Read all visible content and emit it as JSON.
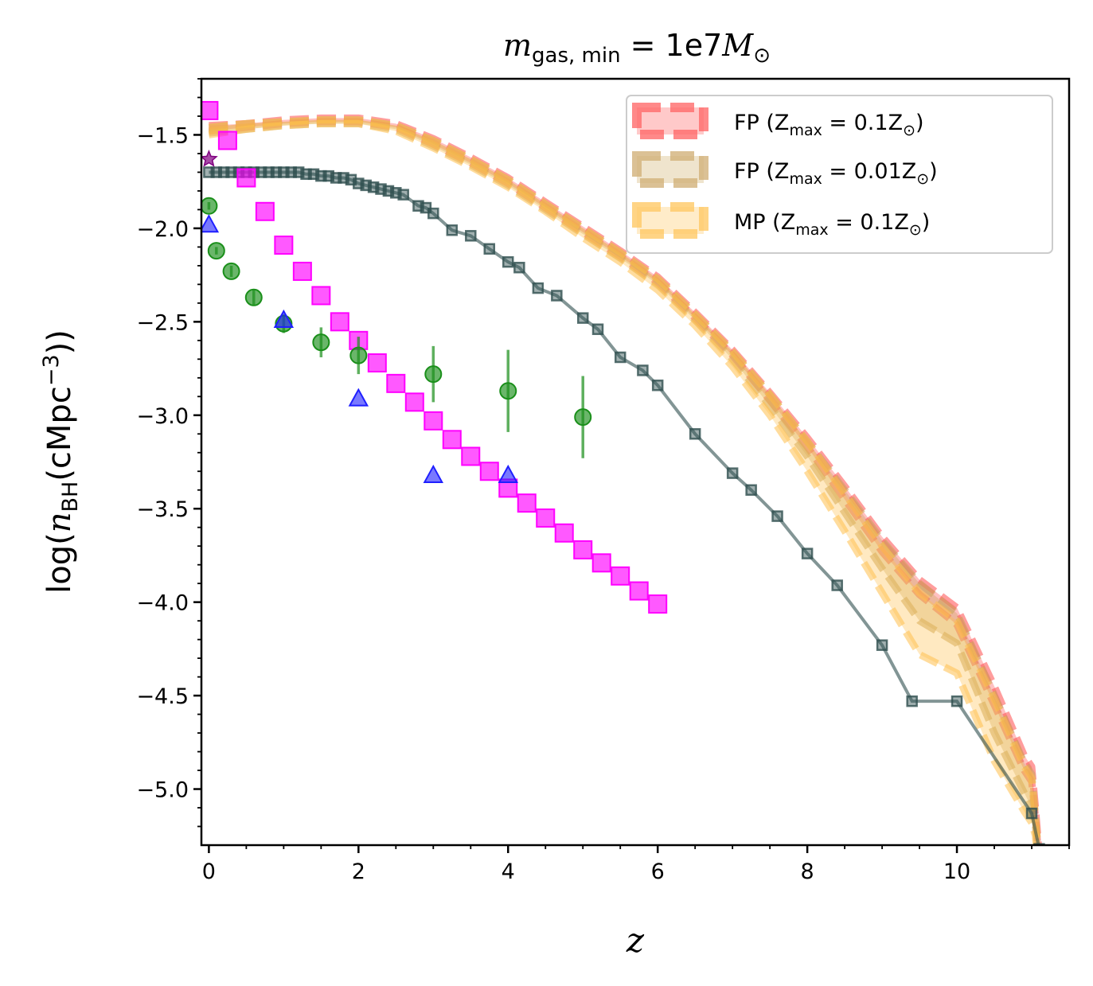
{
  "chart_data": {
    "type": "line",
    "title": "m_gas, min = 1e7M☉",
    "title_parts": {
      "var": "m",
      "sub": "gas, min",
      "rest": " = 1e7",
      "mvar": "M",
      "msub": "⊙"
    },
    "xlabel": "z",
    "ylabel": "log(n_BH(cMpc^-3))",
    "ylabel_parts": {
      "pre": "log(",
      "var": "n",
      "sub": "BH",
      "mid": "(cMpc",
      "sup": "−3",
      "post": "))"
    },
    "xlim": [
      -0.1,
      11.5
    ],
    "ylim": [
      -5.3,
      -1.2
    ],
    "xticks": [
      0,
      2,
      4,
      6,
      8,
      10
    ],
    "xtick_labels": [
      "0",
      "2",
      "4",
      "6",
      "8",
      "10"
    ],
    "yticks": [
      -1.5,
      -2.0,
      -2.5,
      -3.0,
      -3.5,
      -4.0,
      -4.5,
      -5.0
    ],
    "ytick_labels": [
      "−1.5",
      "−2.0",
      "−2.5",
      "−3.0",
      "−3.5",
      "−4.0",
      "−4.5",
      "−5.0"
    ],
    "grid": false,
    "legend_position": "top-right",
    "legend": [
      {
        "label": "FP (Z_max = 0.1Z☉)",
        "pre": "FP (Z",
        "sub": "max",
        "mid": " = 0.1Z",
        "sun": "⊙",
        "post": ")",
        "color": "#ff6b6b"
      },
      {
        "label": "FP (Z_max = 0.01Z☉)",
        "pre": "FP (Z",
        "sub": "max",
        "mid": " = 0.01Z",
        "sun": "⊙",
        "post": ")",
        "color": "#d2b27a"
      },
      {
        "label": "MP (Z_max = 0.1Z☉)",
        "pre": "MP (Z",
        "sub": "max",
        "mid": " = 0.1Z",
        "sun": "⊙",
        "post": ")",
        "color": "#ffc966"
      }
    ],
    "series": [
      {
        "name": "FP (Z_max = 0.1Z☉)",
        "kind": "band",
        "color": "#ff4d4d",
        "x": [
          0,
          0.5,
          1,
          1.5,
          2,
          2.5,
          3,
          3.5,
          4,
          4.5,
          5,
          5.5,
          6,
          6.5,
          7,
          7.5,
          8,
          8.5,
          9,
          9.5,
          10,
          10.5,
          10.9,
          11.0,
          11.05,
          11.1
        ],
        "upper": [
          -1.45,
          -1.44,
          -1.42,
          -1.41,
          -1.41,
          -1.44,
          -1.52,
          -1.62,
          -1.73,
          -1.86,
          -1.99,
          -2.12,
          -2.26,
          -2.45,
          -2.65,
          -2.88,
          -3.12,
          -3.38,
          -3.65,
          -3.88,
          -4.03,
          -4.45,
          -4.82,
          -4.88,
          -5.1,
          -5.35
        ],
        "lower": [
          -1.48,
          -1.46,
          -1.44,
          -1.43,
          -1.43,
          -1.46,
          -1.55,
          -1.65,
          -1.76,
          -1.89,
          -2.02,
          -2.15,
          -2.29,
          -2.48,
          -2.68,
          -2.92,
          -3.17,
          -3.45,
          -3.73,
          -3.96,
          -4.12,
          -4.55,
          -4.9,
          -4.96,
          -5.15,
          -5.4
        ]
      },
      {
        "name": "FP (Z_max = 0.01Z☉)",
        "kind": "band",
        "color": "#c9a45a",
        "x": [
          0,
          0.5,
          1,
          1.5,
          2,
          2.5,
          3,
          3.5,
          4,
          4.5,
          5,
          5.5,
          6,
          6.5,
          7,
          7.5,
          8,
          8.5,
          9,
          9.5,
          10,
          10.5,
          10.9,
          11.0,
          11.05,
          11.1
        ],
        "upper": [
          -1.46,
          -1.44,
          -1.43,
          -1.42,
          -1.42,
          -1.45,
          -1.53,
          -1.63,
          -1.74,
          -1.87,
          -2.0,
          -2.13,
          -2.27,
          -2.46,
          -2.66,
          -2.89,
          -3.14,
          -3.4,
          -3.67,
          -3.9,
          -4.06,
          -4.5,
          -4.86,
          -4.92,
          -5.15,
          -5.4
        ],
        "lower": [
          -1.49,
          -1.47,
          -1.45,
          -1.44,
          -1.44,
          -1.47,
          -1.56,
          -1.66,
          -1.77,
          -1.9,
          -2.03,
          -2.16,
          -2.3,
          -2.49,
          -2.7,
          -2.95,
          -3.22,
          -3.52,
          -3.82,
          -4.1,
          -4.22,
          -4.7,
          -5.02,
          -5.1,
          -5.2,
          -5.45
        ]
      },
      {
        "name": "MP (Z_max = 0.1Z☉)",
        "kind": "band",
        "color": "#ffc04d",
        "x": [
          0,
          0.5,
          1,
          1.5,
          2,
          2.5,
          3,
          3.5,
          4,
          4.5,
          5,
          5.5,
          6,
          6.5,
          7,
          7.5,
          8,
          8.5,
          9,
          9.5,
          10,
          10.5,
          10.9,
          11.0,
          11.05,
          11.1
        ],
        "upper": [
          -1.46,
          -1.44,
          -1.43,
          -1.42,
          -1.42,
          -1.45,
          -1.53,
          -1.63,
          -1.74,
          -1.87,
          -2.0,
          -2.13,
          -2.27,
          -2.46,
          -2.66,
          -2.89,
          -3.14,
          -3.42,
          -3.7,
          -3.95,
          -4.1,
          -4.52,
          -4.88,
          -4.94,
          -5.15,
          -5.4
        ],
        "lower": [
          -1.5,
          -1.47,
          -1.45,
          -1.44,
          -1.44,
          -1.48,
          -1.57,
          -1.67,
          -1.78,
          -1.91,
          -2.05,
          -2.18,
          -2.33,
          -2.52,
          -2.74,
          -3.0,
          -3.3,
          -3.62,
          -3.95,
          -4.28,
          -4.38,
          -4.85,
          -5.12,
          -5.18,
          -5.25,
          -5.5
        ]
      },
      {
        "name": "dark-squares",
        "kind": "line-markers",
        "color": "#2f4f4f",
        "x": [
          0,
          0.1,
          0.2,
          0.3,
          0.4,
          0.5,
          0.6,
          0.7,
          0.8,
          0.9,
          1.0,
          1.1,
          1.2,
          1.3,
          1.4,
          1.5,
          1.6,
          1.7,
          1.8,
          1.9,
          2.0,
          2.1,
          2.2,
          2.3,
          2.4,
          2.5,
          2.6,
          2.8,
          2.9,
          3.0,
          3.25,
          3.5,
          3.75,
          4.0,
          4.15,
          4.4,
          4.65,
          5.0,
          5.2,
          5.5,
          5.8,
          6.0,
          6.5,
          7.0,
          7.25,
          7.6,
          8.0,
          8.4,
          9.0,
          9.4,
          10.0,
          11.0,
          11.1
        ],
        "y": [
          -1.7,
          -1.7,
          -1.7,
          -1.7,
          -1.7,
          -1.7,
          -1.7,
          -1.7,
          -1.7,
          -1.7,
          -1.7,
          -1.7,
          -1.7,
          -1.71,
          -1.71,
          -1.72,
          -1.72,
          -1.73,
          -1.73,
          -1.74,
          -1.76,
          -1.77,
          -1.78,
          -1.79,
          -1.8,
          -1.81,
          -1.82,
          -1.88,
          -1.89,
          -1.92,
          -2.01,
          -2.04,
          -2.11,
          -2.18,
          -2.21,
          -2.32,
          -2.36,
          -2.48,
          -2.54,
          -2.69,
          -2.76,
          -2.84,
          -3.1,
          -3.31,
          -3.4,
          -3.54,
          -3.74,
          -3.91,
          -4.23,
          -4.53,
          -4.53,
          -5.13,
          -5.32
        ]
      },
      {
        "name": "magenta-squares",
        "kind": "markers",
        "color": "#ff00ff",
        "x": [
          0.0,
          0.25,
          0.5,
          0.75,
          1.0,
          1.25,
          1.5,
          1.75,
          2.0,
          2.25,
          2.5,
          2.75,
          3.0,
          3.25,
          3.5,
          3.75,
          4.0,
          4.25,
          4.5,
          4.75,
          5.0,
          5.25,
          5.5,
          5.75,
          6.0
        ],
        "y": [
          -1.37,
          -1.53,
          -1.73,
          -1.91,
          -2.09,
          -2.23,
          -2.36,
          -2.5,
          -2.6,
          -2.72,
          -2.83,
          -2.93,
          -3.03,
          -3.13,
          -3.22,
          -3.3,
          -3.39,
          -3.47,
          -3.55,
          -3.63,
          -3.72,
          -3.79,
          -3.86,
          -3.94,
          -4.01
        ]
      },
      {
        "name": "green-circles",
        "kind": "markers-errorbars",
        "color": "#1a8f1a",
        "x": [
          0.0,
          0.1,
          0.3,
          0.6,
          1.0,
          1.5,
          2.0,
          3.0,
          4.0,
          5.0
        ],
        "y": [
          -1.88,
          -2.12,
          -2.23,
          -2.37,
          -2.51,
          -2.61,
          -2.68,
          -2.78,
          -2.87,
          -3.01
        ],
        "yerr": [
          0.02,
          0.02,
          0.03,
          0.04,
          0.05,
          0.08,
          0.1,
          0.15,
          0.22,
          0.22
        ]
      },
      {
        "name": "blue-triangles",
        "kind": "markers",
        "color": "#1f1fff",
        "x": [
          0.0,
          1.0,
          2.0,
          3.0,
          4.0
        ],
        "y": [
          -1.98,
          -2.49,
          -2.91,
          -3.32,
          -3.32
        ]
      },
      {
        "name": "purple-star",
        "kind": "markers",
        "color": "#800080",
        "x": [
          0.0
        ],
        "y": [
          -1.63
        ]
      }
    ]
  }
}
